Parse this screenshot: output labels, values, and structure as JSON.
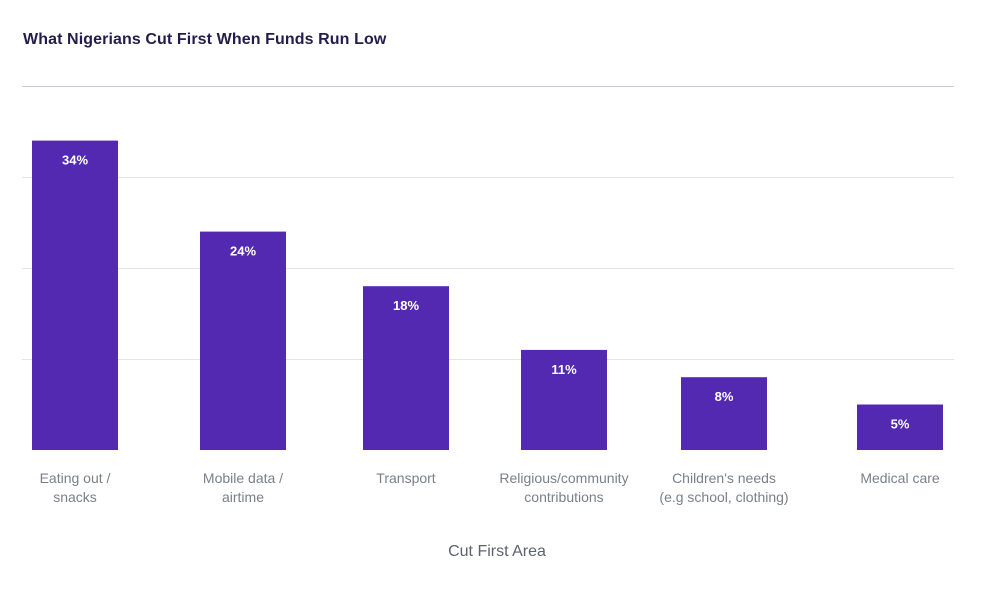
{
  "chart_data": {
    "type": "bar",
    "title": "What Nigerians Cut First When Funds Run Low",
    "xlabel": "Cut First Area",
    "ylabel": "",
    "categories": [
      [
        "Eating out /",
        "snacks"
      ],
      [
        "Mobile data /",
        "airtime"
      ],
      [
        "Transport"
      ],
      [
        "Religious/community",
        "contributions"
      ],
      [
        "Children's needs",
        "(e.g school, clothing)"
      ],
      [
        "Medical care"
      ]
    ],
    "values": [
      34,
      24,
      18,
      11,
      8,
      5
    ],
    "value_labels": [
      "34%",
      "24%",
      "18%",
      "11%",
      "8%",
      "5%"
    ],
    "ylim": [
      0,
      40
    ],
    "grid": true,
    "y_ticks_visible": false,
    "bar_color": "#5329b1"
  }
}
